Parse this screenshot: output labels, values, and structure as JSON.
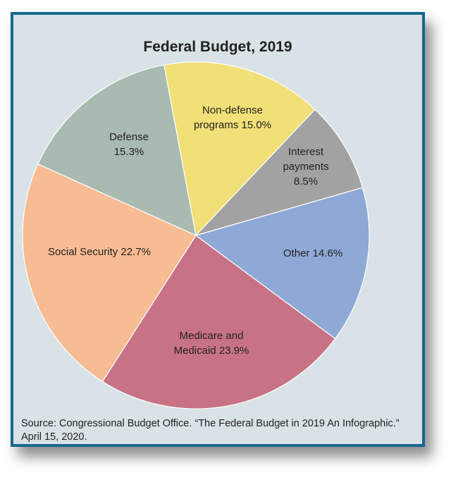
{
  "chart_data": {
    "type": "pie",
    "title": "Federal Budget, 2019",
    "slices": [
      {
        "label": "Non-defense programs",
        "value": 15.0,
        "lines": [
          "Non-defense",
          "programs 15.0%"
        ],
        "color": "#f1df78"
      },
      {
        "label": "Interest payments",
        "value": 8.5,
        "lines": [
          "Interest",
          "payments",
          "8.5%"
        ],
        "color": "#a2a2a2"
      },
      {
        "label": "Other",
        "value": 14.6,
        "lines": [
          "Other 14.6%"
        ],
        "color": "#8fa9d6"
      },
      {
        "label": "Medicare and Medicaid",
        "value": 23.9,
        "lines": [
          "Medicare and",
          "Medicaid 23.9%"
        ],
        "color": "#c87285"
      },
      {
        "label": "Social Security",
        "value": 22.7,
        "lines": [
          "Social Security 22.7%"
        ],
        "color": "#f7bc93"
      },
      {
        "label": "Defense",
        "value": 15.3,
        "lines": [
          "Defense",
          "15.3%"
        ],
        "color": "#a9bbb1"
      }
    ],
    "source": "Source: Congressional Budget Office. “The Federal Budget in 2019 An Infographic.” April 15, 2020."
  },
  "colors": {
    "background": "#d8e2e7",
    "border": "#17678e"
  }
}
